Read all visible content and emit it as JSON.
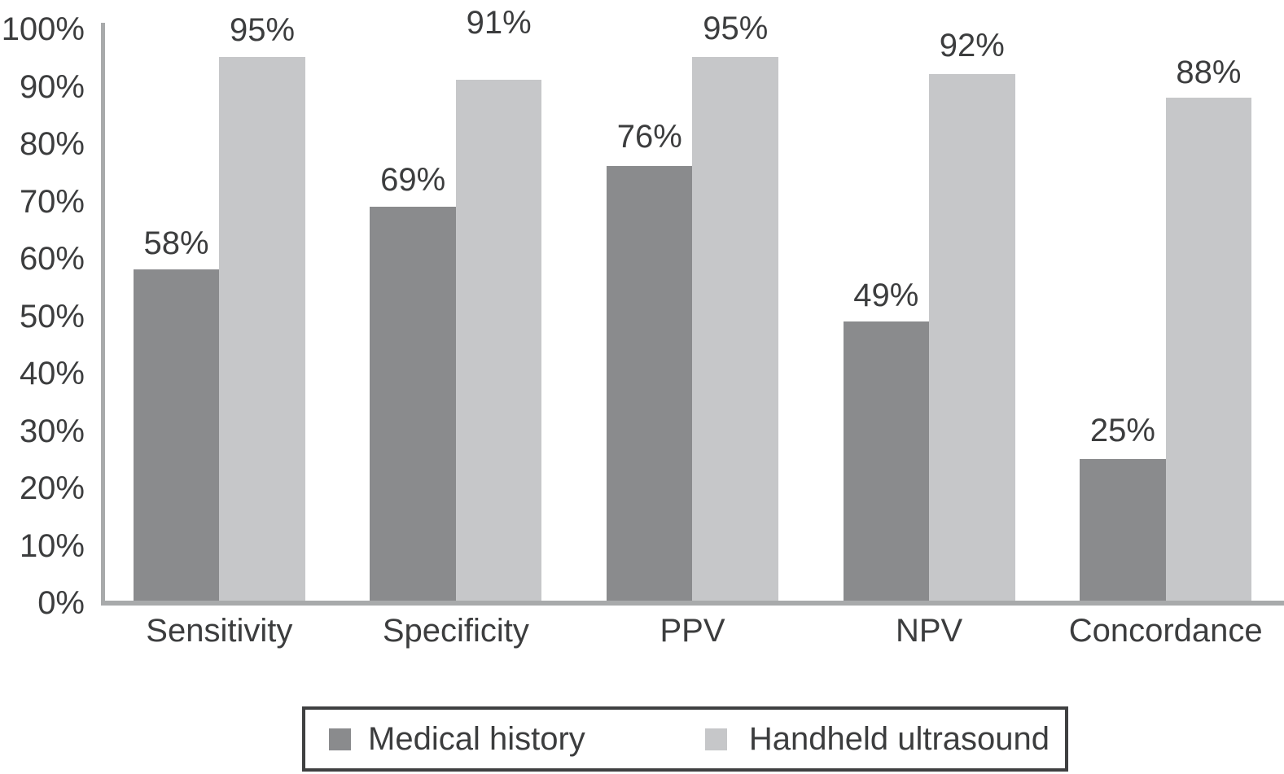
{
  "chart_data": {
    "type": "bar",
    "title": "",
    "categories": [
      "Sensitivity",
      "Specificity",
      "PPV",
      "NPV",
      "Concordance"
    ],
    "series": [
      {
        "name": "Medical history",
        "color": "#8a8b8d",
        "values": [
          58,
          69,
          76,
          49,
          25
        ],
        "labels": [
          "58%",
          "69%",
          "76%",
          "49%",
          "25%"
        ]
      },
      {
        "name": "Handheld ultrasound",
        "color": "#c6c7c9",
        "values": [
          95,
          91,
          95,
          92,
          88
        ],
        "labels": [
          "95%",
          "91%",
          "95%",
          "92%",
          "88%"
        ]
      }
    ],
    "y_axis": {
      "min": 0,
      "max": 100,
      "tick_step": 10,
      "tick_labels": [
        "0%",
        "10%",
        "20%",
        "30%",
        "40%",
        "50%",
        "60%",
        "70%",
        "80%",
        "90%",
        "100%"
      ]
    },
    "legend": {
      "position": "bottom",
      "items": [
        "Medical history",
        "Handheld ultrasound"
      ]
    },
    "grid": false,
    "colors": {
      "axis": "#a8aaab",
      "text": "#3c3d3e",
      "legend_border": "#3f4041",
      "background": "#ffffff"
    }
  }
}
